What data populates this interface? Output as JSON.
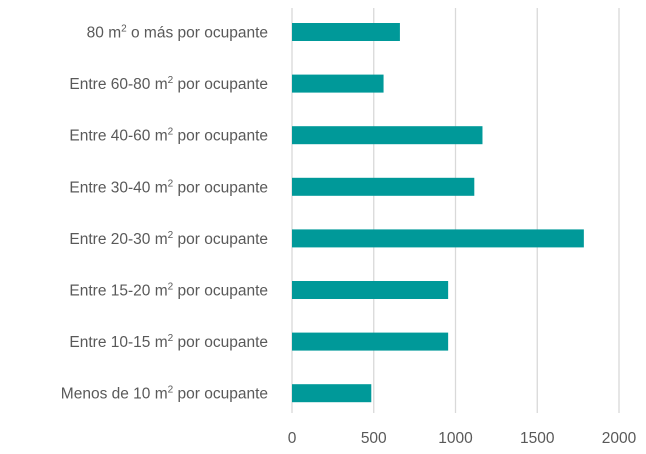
{
  "chart_data": {
    "type": "bar",
    "orientation": "horizontal",
    "categories": [
      {
        "prefix": "80 m",
        "sup": "2",
        "suffix": " o más por ocupante"
      },
      {
        "prefix": "Entre 60-80 m",
        "sup": "2",
        "suffix": " por ocupante"
      },
      {
        "prefix": "Entre 40-60 m",
        "sup": "2",
        "suffix": " por ocupante"
      },
      {
        "prefix": "Entre 30-40 m",
        "sup": "2",
        "suffix": " por ocupante"
      },
      {
        "prefix": "Entre 20-30 m",
        "sup": "2",
        "suffix": " por ocupante"
      },
      {
        "prefix": "Entre 15-20 m",
        "sup": "2",
        "suffix": " por ocupante"
      },
      {
        "prefix": "Entre 10-15 m",
        "sup": "2",
        "suffix": " por ocupante"
      },
      {
        "prefix": "Menos de 10 m",
        "sup": "2",
        "suffix": " por ocupante"
      }
    ],
    "values": [
      660,
      560,
      1165,
      1115,
      1785,
      955,
      955,
      485
    ],
    "xlim": [
      0,
      2000
    ],
    "xticks": [
      "0",
      "500",
      "1000",
      "1500",
      "2000"
    ],
    "grid": true,
    "bar_color": "#009999",
    "grid_color": "#d9d9d9",
    "text_color": "#595959"
  }
}
